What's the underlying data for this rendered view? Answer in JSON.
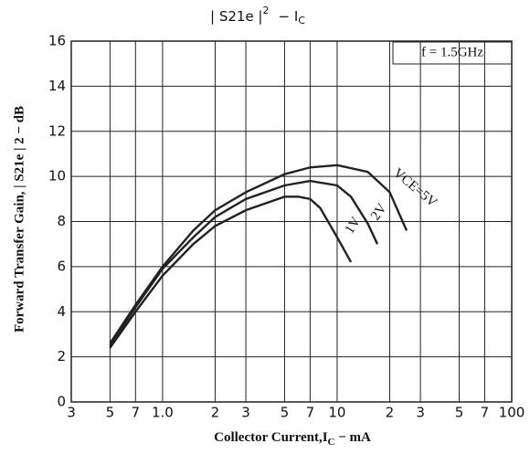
{
  "chart_data": {
    "type": "line",
    "title": {
      "main": "| S21e |",
      "sup": "2",
      "rest": "−  I",
      "sub": "C"
    },
    "y_label": "Forward Transfer Gain, | S21e | 2 − dB",
    "x_label": {
      "main": "Collector Current,I",
      "sub": "C",
      "rest": " − mA"
    },
    "annotation": "f = 1.5GHz",
    "log_x": true,
    "grid": true,
    "xlim": [
      0.3,
      100
    ],
    "xticks": [
      {
        "value": 0.3,
        "label": "3"
      },
      {
        "value": 0.5,
        "label": "5"
      },
      {
        "value": 0.7,
        "label": "7"
      },
      {
        "value": 1,
        "label": "1.0"
      },
      2,
      3,
      5,
      7,
      10,
      {
        "value": 20,
        "label": "2"
      },
      {
        "value": 30,
        "label": "3"
      },
      {
        "value": 50,
        "label": "5"
      },
      {
        "value": 70,
        "label": "7"
      },
      100
    ],
    "ylim": [
      0,
      16
    ],
    "yticks": [
      0,
      2,
      4,
      6,
      8,
      10,
      12,
      14,
      16
    ],
    "series": [
      {
        "name": "1V",
        "color": "#222222",
        "x": [
          0.5,
          0.7,
          1,
          1.5,
          2,
          3,
          5,
          6,
          7,
          8,
          10,
          12
        ],
        "values": [
          2.4,
          4.0,
          5.6,
          7.0,
          7.8,
          8.5,
          9.1,
          9.1,
          9.0,
          8.6,
          7.3,
          6.2
        ]
      },
      {
        "name": "2V",
        "color": "#222222",
        "x": [
          0.5,
          0.7,
          1,
          1.5,
          2,
          3,
          5,
          7,
          10,
          12,
          15,
          17
        ],
        "values": [
          2.5,
          4.2,
          5.9,
          7.3,
          8.2,
          9.0,
          9.6,
          9.8,
          9.6,
          9.1,
          7.9,
          7.0
        ]
      },
      {
        "name": "VCE=5V",
        "color": "#222222",
        "x": [
          0.5,
          0.7,
          1,
          1.5,
          2,
          3,
          5,
          7,
          10,
          15,
          20,
          25
        ],
        "values": [
          2.6,
          4.3,
          6.0,
          7.6,
          8.5,
          9.3,
          10.1,
          10.4,
          10.5,
          10.2,
          9.3,
          7.6
        ]
      }
    ]
  }
}
